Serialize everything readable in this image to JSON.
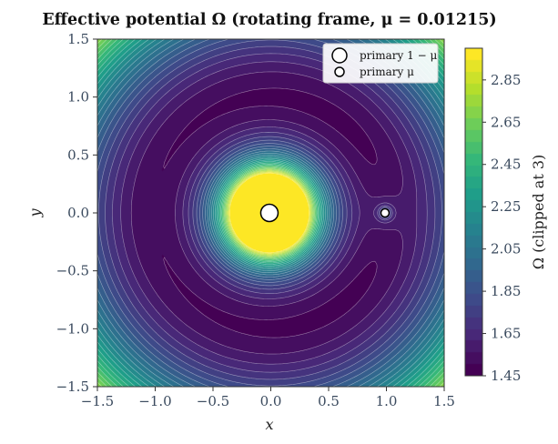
{
  "chart_data": {
    "type": "heatmap",
    "title": "Effective potential Ω (rotating frame, μ = 0.01215)",
    "xlabel": "x",
    "ylabel": "y",
    "xlim": [
      -1.5,
      1.5
    ],
    "ylim": [
      -1.5,
      1.5
    ],
    "x_ticks": [
      "−1.5",
      "−1.0",
      "−0.5",
      "0.0",
      "0.5",
      "1.0",
      "1.5"
    ],
    "y_ticks": [
      "−1.5",
      "−1.0",
      "−0.5",
      "0.0",
      "0.5",
      "1.0",
      "1.5"
    ],
    "x_tick_values": [
      -1.5,
      -1.0,
      -0.5,
      0.0,
      0.5,
      1.0,
      1.5
    ],
    "y_tick_values": [
      -1.5,
      -1.0,
      -0.5,
      0.0,
      0.5,
      1.0,
      1.5
    ],
    "mu": 0.01215,
    "clip_max": 3,
    "colormap": "viridis",
    "colorbar": {
      "label": "Ω (clipped at 3)",
      "min": 1.45,
      "max": 3.0,
      "ticks": [
        "1.45",
        "1.65",
        "1.85",
        "2.05",
        "2.25",
        "2.45",
        "2.65",
        "2.85"
      ],
      "tick_values": [
        1.45,
        1.65,
        1.85,
        2.05,
        2.25,
        2.45,
        2.65,
        2.85
      ]
    },
    "series": [
      {
        "name": "primary 1 − μ",
        "x": [
          -0.01215
        ],
        "y": [
          0.0
        ],
        "color": "#ffffff",
        "edge": "#000000"
      },
      {
        "name": "primary μ",
        "x": [
          0.98785
        ],
        "y": [
          0.0
        ],
        "color": "#ffffff",
        "edge": "#000000"
      }
    ],
    "legend_placement": "top-right",
    "grid": false
  }
}
